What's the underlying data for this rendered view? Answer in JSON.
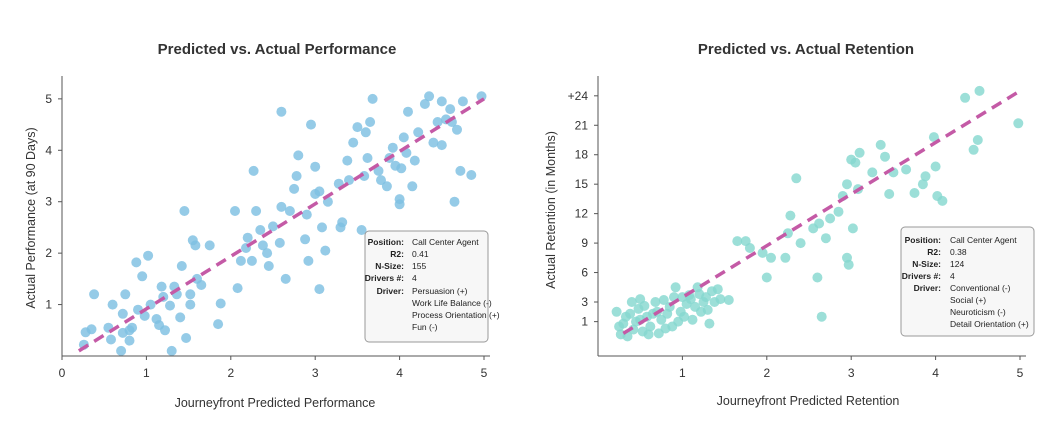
{
  "colors": {
    "performance_point": "#7ec0e2",
    "retention_point": "#86d8cf",
    "trend_line": "#c45aa6",
    "axis": "#555555",
    "info_border": "#999999",
    "info_bg": "#f7f7f7"
  },
  "chart_data": [
    {
      "type": "scatter",
      "title": "Predicted vs. Actual Performance",
      "xlabel": "Journeyfront Predicted Performance",
      "ylabel": "Actual Performance (at 90 Days)",
      "xlim": [
        0,
        5
      ],
      "ylim": [
        0,
        5.25
      ],
      "grid": false,
      "x_ticks": [
        {
          "value": 0,
          "label": "0"
        },
        {
          "value": 1,
          "label": "1"
        },
        {
          "value": 2,
          "label": "2"
        },
        {
          "value": 3,
          "label": "3"
        },
        {
          "value": 4,
          "label": "4"
        },
        {
          "value": 5,
          "label": "5"
        }
      ],
      "y_ticks": [
        {
          "value": 1,
          "label": "1"
        },
        {
          "value": 2,
          "label": "2"
        },
        {
          "value": 3,
          "label": "3"
        },
        {
          "value": 4,
          "label": "4"
        },
        {
          "value": 5,
          "label": "5"
        }
      ],
      "trend_line": {
        "x": [
          0.2,
          5.0
        ],
        "y": [
          0.1,
          5.0
        ]
      },
      "points": [
        [
          0.26,
          0.22
        ],
        [
          0.28,
          0.46
        ],
        [
          0.35,
          0.52
        ],
        [
          0.38,
          1.2
        ],
        [
          0.55,
          0.55
        ],
        [
          0.58,
          0.32
        ],
        [
          0.6,
          1.0
        ],
        [
          0.7,
          0.1
        ],
        [
          0.72,
          0.45
        ],
        [
          0.72,
          0.82
        ],
        [
          0.75,
          1.2
        ],
        [
          0.8,
          0.5
        ],
        [
          0.8,
          0.3
        ],
        [
          0.83,
          0.55
        ],
        [
          0.88,
          1.82
        ],
        [
          0.9,
          0.9
        ],
        [
          0.95,
          1.55
        ],
        [
          0.98,
          0.78
        ],
        [
          1.02,
          1.95
        ],
        [
          1.05,
          1.0
        ],
        [
          1.12,
          0.72
        ],
        [
          1.15,
          0.6
        ],
        [
          1.18,
          1.35
        ],
        [
          1.2,
          1.15
        ],
        [
          1.22,
          0.5
        ],
        [
          1.28,
          0.98
        ],
        [
          1.3,
          0.1
        ],
        [
          1.33,
          1.35
        ],
        [
          1.36,
          1.2
        ],
        [
          1.4,
          0.75
        ],
        [
          1.42,
          1.75
        ],
        [
          1.45,
          2.82
        ],
        [
          1.47,
          0.35
        ],
        [
          1.52,
          1.0
        ],
        [
          1.52,
          1.2
        ],
        [
          1.55,
          2.25
        ],
        [
          1.58,
          2.15
        ],
        [
          1.6,
          1.5
        ],
        [
          1.65,
          1.38
        ],
        [
          1.75,
          2.15
        ],
        [
          1.85,
          0.62
        ],
        [
          1.88,
          1.02
        ],
        [
          2.05,
          2.82
        ],
        [
          2.08,
          1.32
        ],
        [
          2.12,
          1.85
        ],
        [
          2.18,
          2.1
        ],
        [
          2.2,
          2.3
        ],
        [
          2.25,
          1.85
        ],
        [
          2.27,
          3.6
        ],
        [
          2.3,
          2.82
        ],
        [
          2.35,
          2.45
        ],
        [
          2.38,
          2.15
        ],
        [
          2.43,
          2.0
        ],
        [
          2.45,
          1.75
        ],
        [
          2.5,
          2.52
        ],
        [
          2.58,
          2.2
        ],
        [
          2.6,
          4.75
        ],
        [
          2.6,
          2.9
        ],
        [
          2.65,
          1.5
        ],
        [
          2.7,
          2.82
        ],
        [
          2.75,
          3.25
        ],
        [
          2.78,
          3.5
        ],
        [
          2.8,
          3.9
        ],
        [
          2.88,
          2.27
        ],
        [
          2.9,
          2.75
        ],
        [
          2.92,
          1.85
        ],
        [
          2.95,
          4.5
        ],
        [
          3.0,
          3.15
        ],
        [
          3.0,
          3.68
        ],
        [
          3.05,
          1.3
        ],
        [
          3.05,
          3.2
        ],
        [
          3.08,
          2.5
        ],
        [
          3.12,
          2.05
        ],
        [
          3.15,
          3.0
        ],
        [
          3.28,
          3.35
        ],
        [
          3.3,
          2.5
        ],
        [
          3.32,
          2.6
        ],
        [
          3.38,
          3.8
        ],
        [
          3.4,
          3.42
        ],
        [
          3.45,
          4.15
        ],
        [
          3.5,
          4.45
        ],
        [
          3.55,
          2.45
        ],
        [
          3.58,
          3.5
        ],
        [
          3.6,
          4.35
        ],
        [
          3.62,
          3.85
        ],
        [
          3.65,
          4.55
        ],
        [
          3.68,
          5.0
        ],
        [
          3.75,
          3.6
        ],
        [
          3.78,
          3.42
        ],
        [
          3.85,
          3.3
        ],
        [
          3.88,
          3.85
        ],
        [
          3.92,
          4.05
        ],
        [
          3.95,
          3.7
        ],
        [
          4.0,
          2.95
        ],
        [
          4.0,
          3.05
        ],
        [
          4.02,
          3.65
        ],
        [
          4.05,
          4.25
        ],
        [
          4.08,
          3.95
        ],
        [
          4.1,
          4.75
        ],
        [
          4.15,
          3.3
        ],
        [
          4.18,
          3.8
        ],
        [
          4.22,
          4.35
        ],
        [
          4.3,
          4.9
        ],
        [
          4.35,
          5.05
        ],
        [
          4.4,
          4.15
        ],
        [
          4.45,
          4.55
        ],
        [
          4.5,
          4.95
        ],
        [
          4.5,
          4.1
        ],
        [
          4.55,
          4.6
        ],
        [
          4.6,
          4.8
        ],
        [
          4.62,
          4.55
        ],
        [
          4.65,
          3.0
        ],
        [
          4.68,
          4.4
        ],
        [
          4.72,
          3.6
        ],
        [
          4.75,
          4.95
        ],
        [
          4.85,
          3.52
        ],
        [
          4.97,
          5.05
        ]
      ],
      "info_box": {
        "rows": [
          {
            "key": "Position:",
            "value": "Call Center Agent"
          },
          {
            "key": "R2:",
            "value": "0.41"
          },
          {
            "key": "N-Size:",
            "value": "155"
          },
          {
            "key": "Drivers #:",
            "value": "4"
          },
          {
            "key": "Driver:",
            "value": "Persuasion (+)"
          }
        ],
        "more_values": [
          "Work Life Balance (-)",
          "Process Orientation (+)",
          "Fun (-)"
        ]
      }
    },
    {
      "type": "scatter",
      "title": "Predicted vs. Actual Retention",
      "xlabel": "Journeyfront Predicted Retention",
      "ylabel": "Actual Retention  (in Months)",
      "xlim": [
        0,
        5
      ],
      "ylim": [
        -2.5,
        25
      ],
      "grid": false,
      "x_ticks": [
        {
          "value": 1,
          "label": "1"
        },
        {
          "value": 2,
          "label": "2"
        },
        {
          "value": 3,
          "label": "3"
        },
        {
          "value": 4,
          "label": "4"
        },
        {
          "value": 5,
          "label": "5"
        }
      ],
      "y_ticks": [
        {
          "value": 1,
          "label": "1"
        },
        {
          "value": 3,
          "label": "3"
        },
        {
          "value": 6,
          "label": "6"
        },
        {
          "value": 9,
          "label": "9"
        },
        {
          "value": 12,
          "label": "12"
        },
        {
          "value": 15,
          "label": "15"
        },
        {
          "value": 18,
          "label": "18"
        },
        {
          "value": 21,
          "label": "21"
        },
        {
          "value": 24,
          "label": "+24"
        }
      ],
      "trend_line": {
        "x": [
          0.3,
          5.0
        ],
        "y": [
          -0.2,
          24.5
        ]
      },
      "points": [
        [
          0.22,
          2.0
        ],
        [
          0.25,
          0.5
        ],
        [
          0.27,
          -0.3
        ],
        [
          0.3,
          0.8
        ],
        [
          0.33,
          1.5
        ],
        [
          0.35,
          -0.5
        ],
        [
          0.38,
          1.8
        ],
        [
          0.4,
          3.0
        ],
        [
          0.42,
          0.2
        ],
        [
          0.45,
          1.0
        ],
        [
          0.48,
          2.3
        ],
        [
          0.5,
          3.3
        ],
        [
          0.5,
          1.2
        ],
        [
          0.53,
          0.0
        ],
        [
          0.55,
          2.6
        ],
        [
          0.58,
          1.5
        ],
        [
          0.6,
          -0.3
        ],
        [
          0.62,
          0.5
        ],
        [
          0.65,
          1.8
        ],
        [
          0.68,
          3.0
        ],
        [
          0.7,
          2.0
        ],
        [
          0.72,
          -0.2
        ],
        [
          0.75,
          1.2
        ],
        [
          0.78,
          3.2
        ],
        [
          0.8,
          0.3
        ],
        [
          0.82,
          1.8
        ],
        [
          0.85,
          2.5
        ],
        [
          0.88,
          0.5
        ],
        [
          0.9,
          3.5
        ],
        [
          0.92,
          4.5
        ],
        [
          0.95,
          1.0
        ],
        [
          0.98,
          2.0
        ],
        [
          1.0,
          3.5
        ],
        [
          1.02,
          1.5
        ],
        [
          1.05,
          2.8
        ],
        [
          1.08,
          3.7
        ],
        [
          1.1,
          3.3
        ],
        [
          1.12,
          1.2
        ],
        [
          1.15,
          2.5
        ],
        [
          1.18,
          4.5
        ],
        [
          1.2,
          3.8
        ],
        [
          1.22,
          2.0
        ],
        [
          1.25,
          3.0
        ],
        [
          1.28,
          3.5
        ],
        [
          1.3,
          2.2
        ],
        [
          1.32,
          0.8
        ],
        [
          1.35,
          4.1
        ],
        [
          1.38,
          3.0
        ],
        [
          1.42,
          4.3
        ],
        [
          1.45,
          3.3
        ],
        [
          1.55,
          3.2
        ],
        [
          1.65,
          9.2
        ],
        [
          1.75,
          9.2
        ],
        [
          1.8,
          8.5
        ],
        [
          1.95,
          8.0
        ],
        [
          2.0,
          5.5
        ],
        [
          2.05,
          7.5
        ],
        [
          2.22,
          7.5
        ],
        [
          2.25,
          10.0
        ],
        [
          2.28,
          11.8
        ],
        [
          2.35,
          15.6
        ],
        [
          2.4,
          9.0
        ],
        [
          2.55,
          10.5
        ],
        [
          2.6,
          5.5
        ],
        [
          2.62,
          11.0
        ],
        [
          2.65,
          1.5
        ],
        [
          2.7,
          9.5
        ],
        [
          2.75,
          11.5
        ],
        [
          2.85,
          12.2
        ],
        [
          2.9,
          13.8
        ],
        [
          2.95,
          15.0
        ],
        [
          2.95,
          7.5
        ],
        [
          2.97,
          6.8
        ],
        [
          3.0,
          17.5
        ],
        [
          3.02,
          10.5
        ],
        [
          3.05,
          17.2
        ],
        [
          3.08,
          14.5
        ],
        [
          3.1,
          18.2
        ],
        [
          3.25,
          16.2
        ],
        [
          3.35,
          19.0
        ],
        [
          3.4,
          17.8
        ],
        [
          3.45,
          14.0
        ],
        [
          3.5,
          16.2
        ],
        [
          3.65,
          16.5
        ],
        [
          3.75,
          14.1
        ],
        [
          3.85,
          15.0
        ],
        [
          3.88,
          15.8
        ],
        [
          3.98,
          19.8
        ],
        [
          4.0,
          16.8
        ],
        [
          4.02,
          13.8
        ],
        [
          4.08,
          13.3
        ],
        [
          4.35,
          23.8
        ],
        [
          4.45,
          18.5
        ],
        [
          4.5,
          19.5
        ],
        [
          4.52,
          24.5
        ],
        [
          4.98,
          21.2
        ]
      ],
      "info_box": {
        "rows": [
          {
            "key": "Position:",
            "value": "Call Center Agent"
          },
          {
            "key": "R2:",
            "value": "0.38"
          },
          {
            "key": "N-Size:",
            "value": "124"
          },
          {
            "key": "Drivers #:",
            "value": "4"
          },
          {
            "key": "Driver:",
            "value": "Conventional (-)"
          }
        ],
        "more_values": [
          "Social (+)",
          "Neuroticism (-)",
          "Detail Orientation (+)"
        ]
      }
    }
  ]
}
